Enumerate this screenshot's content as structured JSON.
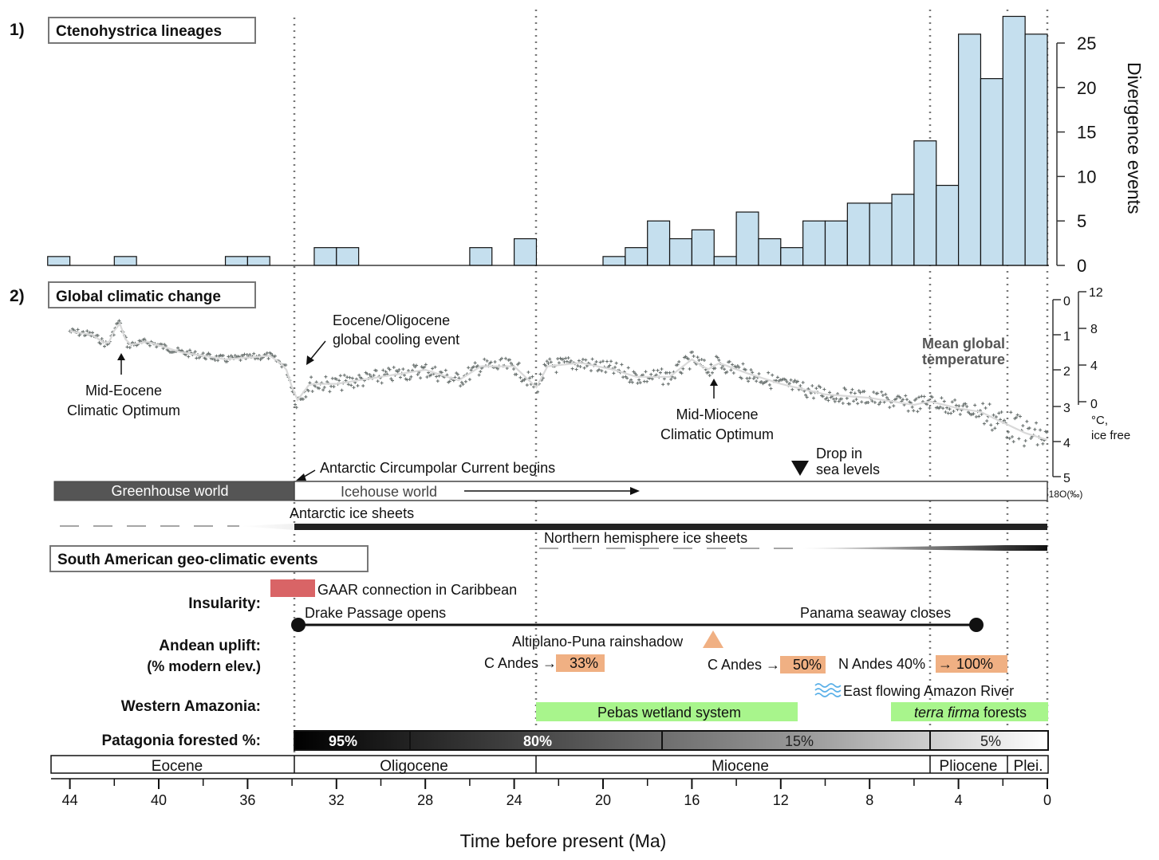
{
  "panel1": {
    "number": "1)",
    "title": "Ctenohystrica lineages",
    "ylabel": "Divergence events"
  },
  "chart_data": {
    "type": "bar",
    "x_label": "Time before present (Ma)",
    "x_range": [
      45,
      0
    ],
    "bin_width_ma": 1,
    "ylabel": "Divergence events",
    "ylim": [
      0,
      28
    ],
    "yticks": [
      0,
      5,
      10,
      15,
      20,
      25
    ],
    "bar_color": "#c5dfee",
    "bins": [
      {
        "start": 45,
        "count": 1
      },
      {
        "start": 42,
        "count": 1
      },
      {
        "start": 37,
        "count": 1
      },
      {
        "start": 36,
        "count": 1
      },
      {
        "start": 33,
        "count": 2
      },
      {
        "start": 32,
        "count": 2
      },
      {
        "start": 26,
        "count": 2
      },
      {
        "start": 24,
        "count": 3
      },
      {
        "start": 20,
        "count": 1
      },
      {
        "start": 19,
        "count": 2
      },
      {
        "start": 18,
        "count": 5
      },
      {
        "start": 17,
        "count": 3
      },
      {
        "start": 16,
        "count": 4
      },
      {
        "start": 15,
        "count": 1
      },
      {
        "start": 14,
        "count": 6
      },
      {
        "start": 13,
        "count": 3
      },
      {
        "start": 12,
        "count": 2
      },
      {
        "start": 11,
        "count": 5
      },
      {
        "start": 10,
        "count": 5
      },
      {
        "start": 9,
        "count": 7
      },
      {
        "start": 8,
        "count": 7
      },
      {
        "start": 7,
        "count": 8
      },
      {
        "start": 6,
        "count": 14
      },
      {
        "start": 5,
        "count": 9
      },
      {
        "start": 4,
        "count": 26
      },
      {
        "start": 3,
        "count": 21
      },
      {
        "start": 2,
        "count": 28
      },
      {
        "start": 1,
        "count": 26
      }
    ]
  },
  "panel2": {
    "number": "2)",
    "title": "Global climatic change",
    "curve_color": "#5a6360",
    "trend_color": "#d9d9d9",
    "d18o_axis": {
      "label": "δ18O(‰)",
      "ticks": [
        "0",
        "1",
        "2",
        "3",
        "4",
        "5"
      ]
    },
    "temp_axis": {
      "unit": "°C,",
      "unit2": "ice free",
      "ticks": [
        "12",
        "8",
        "4",
        "0"
      ]
    },
    "temp_label_1": "Mean global",
    "temp_label_2": "temperature",
    "meco_1": "Mid-Eocene",
    "meco_2": "Climatic Optimum",
    "eo_1": "Eocene/Oligocene",
    "eo_2": "global cooling event",
    "mmco_1": "Mid-Miocene",
    "mmco_2": "Climatic Optimum",
    "acc": "Antarctic Circumpolar Current begins",
    "sea_1": "Drop in",
    "sea_2": "sea levels",
    "greenhouse": "Greenhouse world",
    "icehouse": "Icehouse world",
    "antarctic_ice": "Antarctic ice sheets",
    "northern_ice": "Northern hemisphere ice sheets"
  },
  "panel3": {
    "title": "South American geo-climatic events",
    "insularity_label": "Insularity:",
    "gaar": "GAAR connection in Caribbean",
    "gaar_color": "#d96466",
    "drake": "Drake Passage opens",
    "panama": "Panama seaway closes",
    "andean_label_1": "Andean uplift:",
    "andean_label_2": "(% modern elev.)",
    "altiplano": "Altiplano-Puna rainshadow",
    "c_andes_1_pre": "C Andes →",
    "c_andes_1_val": "33%",
    "c_andes_2_pre": "C Andes →",
    "c_andes_2_val": "50%",
    "n_andes_pre": "N Andes 40%",
    "n_andes_val": "→ 100%",
    "uplift_color": "#f0b083",
    "amazonia_label": "Western Amazonia:",
    "amazon_river": "East flowing Amazon River",
    "pebas": "Pebas wetland system",
    "terra_italic": "terra firma",
    "terra_rest": " forests",
    "wetland_color": "#a8f58c",
    "patagonia_label": "Patagonia forested %:",
    "forest": [
      "95%",
      "80%",
      "15%",
      "5%"
    ]
  },
  "epochs": [
    "Eocene",
    "Oligocene",
    "Miocene",
    "Pliocene",
    "Plei."
  ],
  "x_axis": {
    "label": "Time before present (Ma)",
    "ticks": [
      "44",
      "40",
      "36",
      "32",
      "28",
      "24",
      "20",
      "16",
      "12",
      "8",
      "4",
      "0"
    ]
  }
}
